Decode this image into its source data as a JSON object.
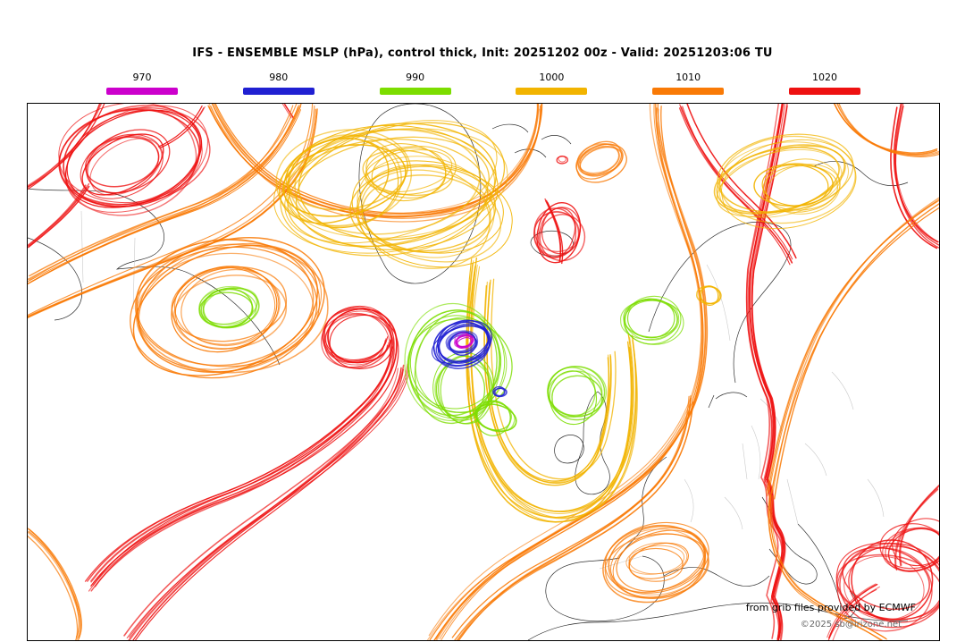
{
  "title": "IFS - ENSEMBLE MSLP (hPa), control thick, Init: 20251202 00z - Valid: 20251203:06 TU",
  "legend": {
    "items": [
      {
        "label": "970",
        "color": "#cc00cc"
      },
      {
        "label": "980",
        "color": "#2020d2"
      },
      {
        "label": "990",
        "color": "#7cdd00"
      },
      {
        "label": "1000",
        "color": "#f2b400"
      },
      {
        "label": "1010",
        "color": "#f97a06"
      },
      {
        "label": "1020",
        "color": "#ee1111"
      }
    ]
  },
  "map": {
    "attribution_line1": "from grib files provided by ECMWF",
    "attribution_line2": "©2025 sb@irizone.net"
  },
  "colors": {
    "coastline": "#1a1a1a",
    "borders": "#c4c4c4",
    "background": "#ffffff"
  }
}
